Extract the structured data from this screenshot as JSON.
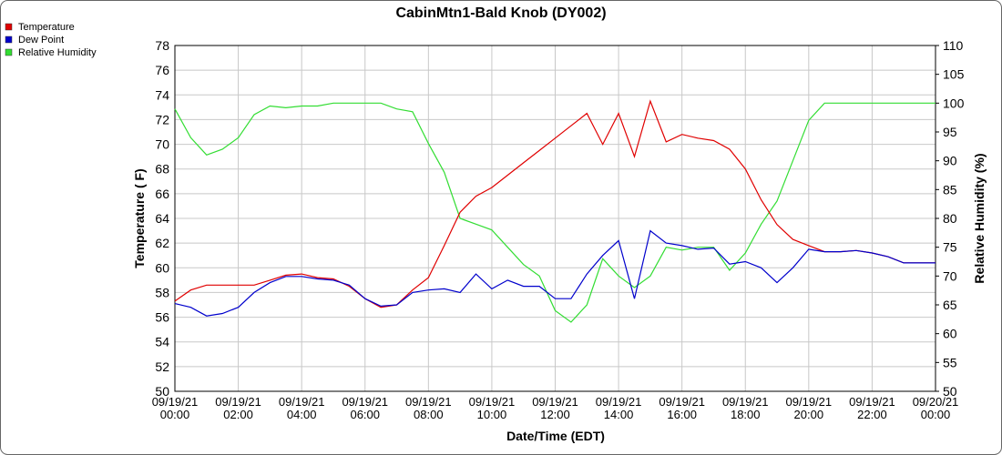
{
  "chart_data": {
    "type": "line",
    "title": "CabinMtn1-Bald Knob (DY002)",
    "xlabel": "Date/Time (EDT)",
    "ylabel": "Temperature ( F)",
    "y2label": "Relative Humidity (%)",
    "x": [
      "09/19/21 00:00",
      "09/19/21 00:30",
      "09/19/21 01:00",
      "09/19/21 01:30",
      "09/19/21 02:00",
      "09/19/21 02:30",
      "09/19/21 03:00",
      "09/19/21 03:30",
      "09/19/21 04:00",
      "09/19/21 04:30",
      "09/19/21 05:00",
      "09/19/21 05:30",
      "09/19/21 06:00",
      "09/19/21 06:30",
      "09/19/21 07:00",
      "09/19/21 07:30",
      "09/19/21 08:00",
      "09/19/21 08:30",
      "09/19/21 09:00",
      "09/19/21 09:30",
      "09/19/21 10:00",
      "09/19/21 10:30",
      "09/19/21 11:00",
      "09/19/21 11:30",
      "09/19/21 12:00",
      "09/19/21 12:30",
      "09/19/21 13:00",
      "09/19/21 13:30",
      "09/19/21 14:00",
      "09/19/21 14:30",
      "09/19/21 15:00",
      "09/19/21 15:30",
      "09/19/21 16:00",
      "09/19/21 16:30",
      "09/19/21 17:00",
      "09/19/21 17:30",
      "09/19/21 18:00",
      "09/19/21 18:30",
      "09/19/21 19:00",
      "09/19/21 19:30",
      "09/19/21 20:00",
      "09/19/21 20:30",
      "09/19/21 21:00",
      "09/19/21 21:30",
      "09/19/21 22:00",
      "09/19/21 22:30",
      "09/19/21 23:00",
      "09/19/21 23:30",
      "09/20/21 00:00"
    ],
    "series": [
      {
        "name": "Temperature",
        "color": "#e00000",
        "values": [
          57.3,
          58.2,
          58.6,
          58.6,
          58.6,
          58.6,
          59.0,
          59.4,
          59.5,
          59.2,
          59.1,
          58.5,
          57.5,
          56.8,
          57.0,
          58.2,
          59.2,
          61.8,
          64.5,
          65.8,
          66.5,
          67.5,
          68.5,
          69.5,
          70.5,
          71.5,
          72.5,
          70.0,
          72.5,
          69.0,
          73.5,
          70.2,
          70.8,
          70.5,
          70.3,
          69.6,
          68.0,
          65.5,
          63.5,
          62.3,
          61.8,
          61.3,
          61.3,
          61.4,
          61.2,
          60.9,
          60.4,
          60.4,
          60.4
        ]
      },
      {
        "name": "Dew Point",
        "color": "#0000cc",
        "values": [
          57.1,
          56.8,
          56.1,
          56.3,
          56.8,
          58.0,
          58.8,
          59.3,
          59.3,
          59.1,
          59.0,
          58.6,
          57.5,
          56.9,
          57.0,
          58.0,
          58.2,
          58.3,
          58.0,
          59.5,
          58.3,
          59.0,
          58.5,
          58.5,
          57.5,
          57.5,
          59.5,
          61.0,
          62.2,
          57.5,
          63.0,
          62.0,
          61.8,
          61.5,
          61.6,
          60.3,
          60.5,
          60.0,
          58.8,
          60.0,
          61.5,
          61.3,
          61.3,
          61.4,
          61.2,
          60.9,
          60.4,
          60.4,
          60.4
        ]
      },
      {
        "name": "Relative Humidity",
        "color": "#33dd33",
        "axis": "y2",
        "values": [
          99,
          94,
          91,
          92,
          94,
          98,
          99.5,
          99.2,
          99.5,
          99.5,
          100,
          100,
          100,
          100,
          99,
          98.5,
          93,
          88,
          80,
          79,
          78,
          75,
          72,
          70,
          64,
          62,
          65,
          73,
          70,
          68,
          70,
          75,
          74.5,
          75,
          75,
          71,
          74,
          79,
          83,
          90,
          97,
          100,
          100,
          100,
          100,
          100,
          100,
          100,
          100
        ]
      }
    ],
    "xlim": [
      "09/19/21 00:00",
      "09/20/21 00:00"
    ],
    "xticks": [
      "09/19/21 00:00",
      "09/19/21 02:00",
      "09/19/21 04:00",
      "09/19/21 06:00",
      "09/19/21 08:00",
      "09/19/21 10:00",
      "09/19/21 12:00",
      "09/19/21 14:00",
      "09/19/21 16:00",
      "09/19/21 18:00",
      "09/19/21 20:00",
      "09/19/21 22:00",
      "09/20/21 00:00"
    ],
    "ylim": [
      50,
      78
    ],
    "yticks": [
      50,
      52,
      54,
      56,
      58,
      60,
      62,
      64,
      66,
      68,
      70,
      72,
      74,
      76,
      78
    ],
    "y2lim": [
      50,
      110
    ],
    "y2ticks": [
      50,
      55,
      60,
      65,
      70,
      75,
      80,
      85,
      90,
      95,
      100,
      105,
      110
    ],
    "grid": true,
    "legend": "top-left"
  }
}
